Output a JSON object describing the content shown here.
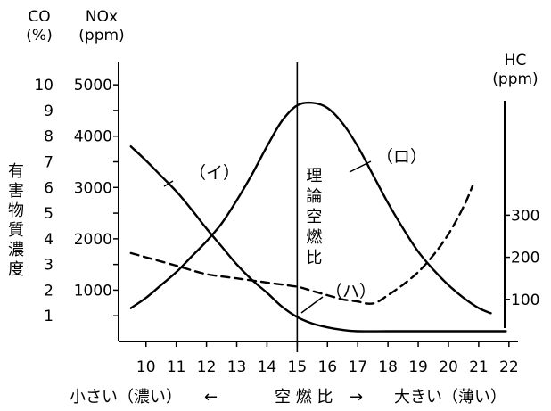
{
  "chart_data": {
    "type": "line",
    "title": "",
    "xlabel": {
      "left": "小さい（濃い）",
      "arrow_left": "←",
      "center": "空 燃 比",
      "arrow_right": "→",
      "right": "大きい（薄い）"
    },
    "x": {
      "range": [
        9.3,
        22.3
      ],
      "ticks": [
        10,
        11,
        12,
        13,
        14,
        15,
        16,
        17,
        18,
        19,
        20,
        21,
        22
      ]
    },
    "y_left_co": {
      "header": [
        "CO",
        "(%)"
      ],
      "range": [
        0,
        10.7
      ],
      "ticks": [
        1,
        2,
        3,
        4,
        5,
        6,
        7,
        8,
        9,
        10
      ]
    },
    "y_left_nox": {
      "header": [
        "NOx",
        "(ppm)"
      ],
      "ticks": [
        1000,
        2000,
        3000,
        4000,
        5000
      ],
      "co_equivalent_per_1000ppm": 2.0
    },
    "y_right_hc": {
      "header": [
        "HC",
        "(ppm)"
      ],
      "ticks": [
        100,
        200,
        300
      ],
      "co_equivalent_per_100ppm": 1.64
    },
    "ylabel_left": "有害物質濃度",
    "stoichiometric": {
      "x": 15,
      "label": "理論空燃比"
    },
    "series": [
      {
        "name": "（イ）",
        "dash": "solid",
        "axis": "CO (%)",
        "x": [
          9.5,
          10.0,
          10.5,
          11.0,
          11.5,
          12.0,
          12.5,
          13.0,
          13.5,
          14.0,
          14.5,
          15.0,
          15.5,
          16.0,
          16.5,
          17.0,
          18.0,
          19.0,
          20.0,
          21.0,
          21.9
        ],
        "y": [
          7.6,
          7.05,
          6.45,
          5.85,
          5.15,
          4.4,
          3.7,
          3.0,
          2.4,
          1.9,
          1.35,
          0.95,
          0.7,
          0.55,
          0.45,
          0.4,
          0.4,
          0.4,
          0.4,
          0.4,
          0.4
        ]
      },
      {
        "name": "（ロ）",
        "dash": "solid",
        "axis": "NOx (ppm)",
        "x": [
          9.5,
          10.0,
          10.5,
          11.0,
          11.5,
          12.0,
          12.5,
          13.0,
          13.5,
          14.0,
          14.5,
          15.0,
          15.5,
          16.0,
          16.5,
          17.0,
          17.5,
          18.0,
          18.5,
          19.0,
          19.5,
          20.0,
          20.5,
          21.0,
          21.4
        ],
        "y": [
          650,
          850,
          1100,
          1350,
          1650,
          1950,
          2300,
          2750,
          3250,
          3800,
          4300,
          4600,
          4650,
          4550,
          4250,
          3800,
          3250,
          2700,
          2200,
          1750,
          1400,
          1100,
          850,
          650,
          550
        ]
      },
      {
        "name": "（ハ）",
        "dash": "dashed",
        "axis": "HC (ppm)",
        "x": [
          9.5,
          10.0,
          11.0,
          12.0,
          13.0,
          14.0,
          15.0,
          15.5,
          16.0,
          16.5,
          17.0,
          17.3,
          17.6,
          18.0,
          18.5,
          19.0,
          19.5,
          20.0,
          20.5,
          20.8
        ],
        "y": [
          210,
          200,
          180,
          160,
          150,
          140,
          130,
          120,
          110,
          100,
          95,
          90,
          92,
          110,
          135,
          165,
          205,
          255,
          320,
          370
        ]
      }
    ],
    "annotations": [
      {
        "id": "ann-i",
        "text": "（イ）",
        "series": 0
      },
      {
        "id": "ann-ro",
        "text": "（ロ）",
        "series": 1
      },
      {
        "id": "ann-ha",
        "text": "（ハ）",
        "series": 2
      }
    ]
  }
}
